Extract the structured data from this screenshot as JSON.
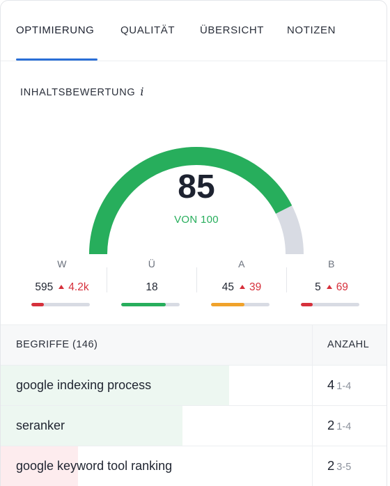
{
  "tabs": [
    {
      "label": "OPTIMIERUNG",
      "active": true
    },
    {
      "label": "QUALITÄT",
      "active": false
    },
    {
      "label": "ÜBERSICHT",
      "active": false
    },
    {
      "label": "NOTIZEN",
      "active": false
    }
  ],
  "content_score": {
    "title": "INHALTSBEWERTUNG",
    "info_icon": "info-icon",
    "score": "85",
    "max_label": "VON 100",
    "score_value": 85,
    "score_max": 100,
    "colors": {
      "good": "#27ae5c",
      "track": "#d8dbe3"
    }
  },
  "metrics": [
    {
      "label": "W",
      "value": "595",
      "delta": "4.2k",
      "progress": 0.22,
      "color": "#d6303b"
    },
    {
      "label": "Ü",
      "value": "18",
      "delta": "",
      "progress": 0.76,
      "color": "#27ae5c"
    },
    {
      "label": "A",
      "value": "45",
      "delta": "39",
      "progress": 0.57,
      "color": "#f0a22b"
    },
    {
      "label": "B",
      "value": "5",
      "delta": "69",
      "progress": 0.2,
      "color": "#d6303b"
    }
  ],
  "terms_table": {
    "header_terms": "BEGRIFFE (146)",
    "header_count": "ANZAHL",
    "rows": [
      {
        "term": "google indexing process",
        "count": "4",
        "range": "1-4",
        "fill": 0.59,
        "color": "#edf7f1"
      },
      {
        "term": "seranker",
        "count": "2",
        "range": "1-4",
        "fill": 0.47,
        "color": "#edf7f1"
      },
      {
        "term": "google keyword tool ranking",
        "count": "2",
        "range": "3-5",
        "fill": 0.2,
        "color": "#fdecee"
      }
    ]
  }
}
